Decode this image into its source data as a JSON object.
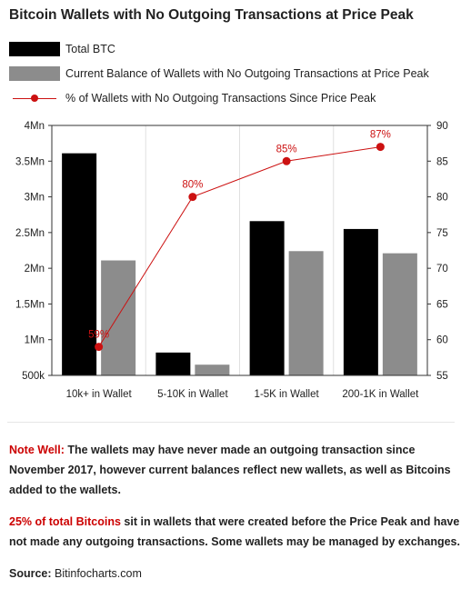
{
  "title": "Bitcoin Wallets with No Outgoing Transactions at Price Peak",
  "legend": [
    {
      "label": "Total BTC",
      "color": "#000000",
      "kind": "bar"
    },
    {
      "label": "Current Balance of Wallets with No Outgoing Transactions at Price Peak",
      "color": "#8c8c8c",
      "kind": "bar"
    },
    {
      "label": "% of Wallets with No Outgoing Transactions Since Price Peak",
      "color": "#cc1111",
      "kind": "line"
    }
  ],
  "chart_data": {
    "type": "bar",
    "categories": [
      "10k+ in Wallet",
      "5-10K in Wallet",
      "1-5K in Wallet",
      "200-1K in Wallet"
    ],
    "series": [
      {
        "name": "Total BTC",
        "values": [
          3610000,
          820000,
          2660000,
          2550000
        ],
        "color": "#000000",
        "axis": "left"
      },
      {
        "name": "Current Balance of Wallets with No Outgoing Transactions at Price Peak",
        "values": [
          2110000,
          650000,
          2240000,
          2210000
        ],
        "color": "#8c8c8c",
        "axis": "left"
      },
      {
        "name": "% of Wallets with No Outgoing Transactions Since Price Peak",
        "type": "line",
        "values": [
          59,
          80,
          85,
          87
        ],
        "labels": [
          "59%",
          "80%",
          "85%",
          "87%"
        ],
        "color": "#cc1111",
        "axis": "right"
      }
    ],
    "yleft": {
      "min": 500000,
      "max": 4000000,
      "ticks": [
        "500k",
        "1Mn",
        "1.5Mn",
        "2Mn",
        "2.5Mn",
        "3Mn",
        "3.5Mn",
        "4Mn"
      ]
    },
    "yright": {
      "min": 55,
      "max": 90,
      "ticks": [
        "55",
        "60",
        "65",
        "70",
        "75",
        "80",
        "85",
        "90"
      ]
    },
    "grid": "vertical"
  },
  "notes": {
    "note_label": "Note Well:",
    "note_text": " The wallets may have never made an outgoing transaction since November 2017, however current balances reflect new wallets, as well as Bitcoins added to the wallets.",
    "pct_label": "25% of total Bitcoins",
    "pct_text": " sit in wallets that were created before the Price Peak and have not made any outgoing transactions. Some wallets may be managed by exchanges.",
    "source_label": "Source:",
    "source_value": " Bitinfocharts.com"
  }
}
